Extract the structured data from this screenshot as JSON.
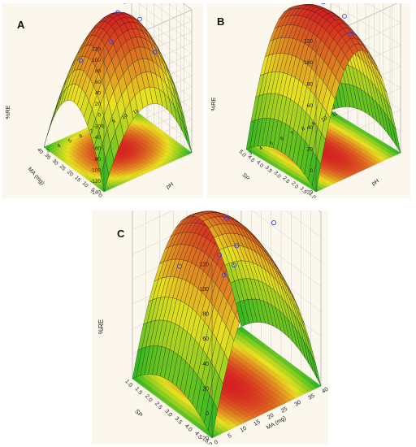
{
  "chart_data": [
    {
      "type": "surface",
      "panel": "A",
      "xlabel": "MA (mg)",
      "ylabel": "pH",
      "zlabel": "%RE",
      "x_ticks": [
        "0",
        "5",
        "10",
        "15",
        "20",
        "25",
        "30",
        "35",
        "40"
      ],
      "y_ticks": [
        "3",
        "4",
        "5",
        "6",
        "7",
        "8",
        "9",
        "10",
        "11"
      ],
      "z_ticks": [
        "120",
        "100",
        "80",
        "60",
        "40",
        "20",
        "0",
        "-20",
        "-40",
        "-60",
        "-80",
        "-100",
        "-120",
        "-140"
      ],
      "xlim": [
        0,
        40
      ],
      "ylim": [
        3,
        11
      ],
      "zlim": [
        -140,
        120
      ],
      "surface_peak": {
        "x": 20,
        "y": 7,
        "z": 105
      },
      "surface_range": [
        -140,
        105
      ],
      "design_points": [
        {
          "x": 20,
          "y": 7,
          "z": 110
        },
        {
          "x": 10,
          "y": 5,
          "z": 95
        },
        {
          "x": 30,
          "y": 9,
          "z": 92
        },
        {
          "x": 20,
          "y": 9,
          "z": 80
        },
        {
          "x": 10,
          "y": 9,
          "z": 40
        },
        {
          "x": 30,
          "y": 5,
          "z": 20
        }
      ]
    },
    {
      "type": "surface",
      "panel": "B",
      "xlabel": "SP",
      "ylabel": "pH",
      "zlabel": "%RE",
      "x_ticks": [
        "1.0",
        "1.5",
        "2.0",
        "2.5",
        "3.0",
        "3.5",
        "4.0",
        "4.5",
        "5.0"
      ],
      "y_ticks": [
        "3",
        "4",
        "5",
        "6",
        "7",
        "8",
        "9",
        "10",
        "11"
      ],
      "z_ticks": [
        "120",
        "100",
        "80",
        "60",
        "40",
        "20",
        "0",
        "-20"
      ],
      "xlim": [
        1,
        5
      ],
      "ylim": [
        3,
        11
      ],
      "zlim": [
        -20,
        120
      ],
      "surface_peak": {
        "x": 3,
        "y": 7,
        "z": 110
      },
      "surface_range": [
        -20,
        110
      ],
      "design_points": [
        {
          "x": 3,
          "y": 7,
          "z": 118
        },
        {
          "x": 3,
          "y": 9,
          "z": 96
        },
        {
          "x": 2,
          "y": 8,
          "z": 94
        }
      ]
    },
    {
      "type": "surface",
      "panel": "C",
      "xlabel": "MA (mg)",
      "ylabel": "SP",
      "zlabel": "%RE",
      "x_ticks": [
        "0",
        "5",
        "10",
        "15",
        "20",
        "25",
        "30",
        "35",
        "40"
      ],
      "y_ticks": [
        "1.0",
        "1.5",
        "2.0",
        "2.5",
        "3.0",
        "3.5",
        "4.0",
        "4.5",
        "5.0"
      ],
      "z_ticks": [
        "120",
        "100",
        "80",
        "60",
        "40",
        "20",
        "0",
        "-20"
      ],
      "xlim": [
        0,
        40
      ],
      "ylim": [
        1,
        5
      ],
      "zlim": [
        -20,
        120
      ],
      "surface_peak": {
        "x": 20,
        "y": 3,
        "z": 110
      },
      "surface_range": [
        -20,
        110
      ],
      "design_points": [
        {
          "x": 20,
          "y": 3,
          "z": 112
        },
        {
          "x": 30,
          "y": 4,
          "z": 110
        },
        {
          "x": 10,
          "y": 4,
          "z": 105
        },
        {
          "x": 20,
          "y": 3.5,
          "z": 96
        },
        {
          "x": 10,
          "y": 2,
          "z": 72
        },
        {
          "x": 30,
          "y": 2,
          "z": 52
        },
        {
          "x": 30,
          "y": 1.5,
          "z": 38
        }
      ]
    }
  ],
  "colors": {
    "surface_high": "#d42020",
    "surface_mid": "#e8e020",
    "surface_low": "#10b020",
    "mesh_line": "#1a1a1a",
    "point_outline": "#3344ee",
    "panel_background": "#fcf7ec"
  }
}
